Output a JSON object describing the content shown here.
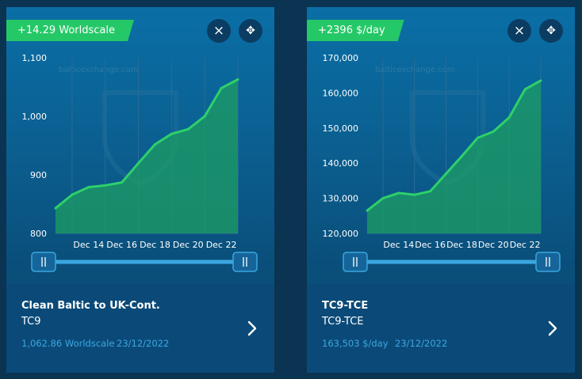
{
  "cards": [
    {
      "badge": "+14.29 Worldscale",
      "close_icon": "×",
      "move_icon": "✥",
      "watermark": "balticexchange.com",
      "title": "Clean Baltic to UK-Cont.",
      "code": "TC9",
      "value": "1,062.86 Worldscale",
      "date": "23/12/2022",
      "chart_data": {
        "type": "area",
        "x": [
          "Dec 12",
          "Dec 13",
          "Dec 14",
          "Dec 15",
          "Dec 16",
          "Dec 17",
          "Dec 18",
          "Dec 19",
          "Dec 20",
          "Dec 21",
          "Dec 22",
          "Dec 23"
        ],
        "values": [
          843,
          866,
          879,
          882,
          887,
          920,
          952,
          970,
          978,
          1000,
          1048,
          1063
        ],
        "ylim": [
          800,
          1100
        ],
        "y_ticks": [
          "800",
          "900",
          "1,000",
          "1,100"
        ],
        "y_tick_values": [
          800,
          900,
          1000,
          1100
        ],
        "x_ticks": [
          "Dec 14",
          "Dec 16",
          "Dec 18",
          "Dec 20",
          "Dec 22"
        ],
        "x_tick_index": [
          2,
          4,
          6,
          8,
          10
        ],
        "line_color": "#2ed06a",
        "fill_color": "#1d9e63"
      }
    },
    {
      "badge": "+2396 $/day",
      "close_icon": "×",
      "move_icon": "✥",
      "watermark": "balticexchange.com",
      "title": "TC9-TCE",
      "code": "TC9-TCE",
      "value": "163,503 $/day",
      "date": "23/12/2022",
      "chart_data": {
        "type": "area",
        "x": [
          "Dec 12",
          "Dec 13",
          "Dec 14",
          "Dec 15",
          "Dec 16",
          "Dec 17",
          "Dec 18",
          "Dec 19",
          "Dec 20",
          "Dec 21",
          "Dec 22",
          "Dec 23"
        ],
        "values": [
          126500,
          130000,
          131500,
          131000,
          132000,
          137000,
          142000,
          147200,
          149000,
          153000,
          161000,
          163500
        ],
        "ylim": [
          120000,
          170000
        ],
        "y_ticks": [
          "120,000",
          "130,000",
          "140,000",
          "150,000",
          "160,000",
          "170,000"
        ],
        "y_tick_values": [
          120000,
          130000,
          140000,
          150000,
          160000,
          170000
        ],
        "x_ticks": [
          "Dec 14",
          "Dec 16",
          "Dec 18",
          "Dec 20",
          "Dec 22"
        ],
        "x_tick_index": [
          2,
          4,
          6,
          8,
          10
        ],
        "line_color": "#2ed06a",
        "fill_color": "#1d9e63"
      }
    }
  ]
}
